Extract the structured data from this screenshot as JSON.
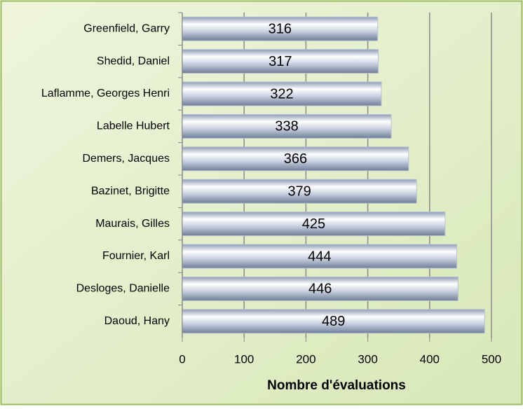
{
  "chart_data": {
    "type": "bar",
    "orientation": "horizontal",
    "x_label": "Nombre d'évaluations",
    "categories": [
      "Greenfield, Garry",
      "Shedid, Daniel",
      "Laflamme, Georges Henri",
      "Labelle Hubert",
      "Demers, Jacques",
      "Bazinet, Brigitte",
      "Maurais, Gilles",
      "Fournier, Karl",
      "Desloges, Danielle",
      "Daoud, Hany"
    ],
    "values": [
      316,
      317,
      322,
      338,
      366,
      379,
      425,
      444,
      446,
      489
    ],
    "color": "#b8c2d6",
    "xlim": [
      0,
      500
    ],
    "xticks": [
      0,
      100,
      200,
      300,
      400,
      500
    ],
    "grid": true
  }
}
